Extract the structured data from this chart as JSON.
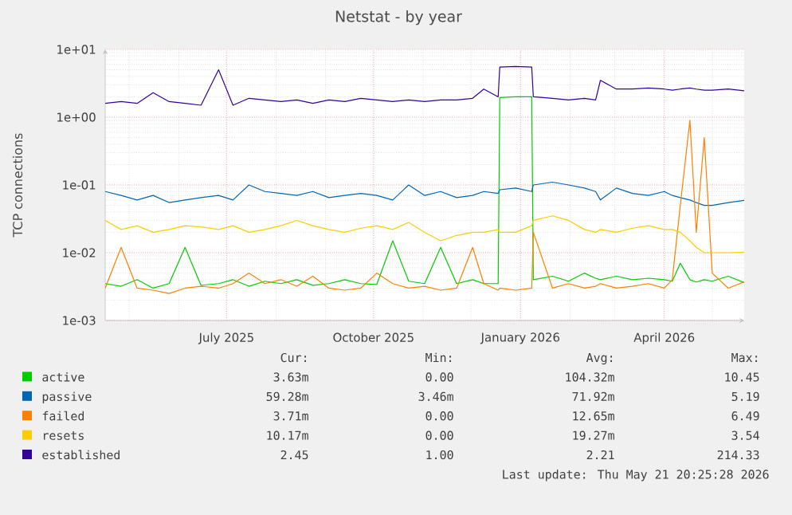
{
  "chart_data": {
    "type": "line",
    "title": "Netstat - by year",
    "ylabel": "TCP connections",
    "log": "y",
    "grid": true,
    "legend": "bottom",
    "xlim": [
      "2025-04-16",
      "2026-05-21"
    ],
    "xticks": [
      {
        "value": "2025-07-01",
        "label": "July 2025"
      },
      {
        "value": "2025-10-01",
        "label": "October 2025"
      },
      {
        "value": "2026-01-01",
        "label": "January 2026"
      },
      {
        "value": "2026-04-01",
        "label": "April 2026"
      }
    ],
    "ylim": [
      0.001,
      10
    ],
    "yticks": [
      {
        "value": 0.001,
        "label": "1e-03"
      },
      {
        "value": 0.01,
        "label": "1e-02"
      },
      {
        "value": 0.1,
        "label": "1e-01"
      },
      {
        "value": 1,
        "label": "1e+00"
      },
      {
        "value": 10,
        "label": "1e+01"
      }
    ],
    "x": [
      "2025-04-16",
      "2025-04-26",
      "2025-05-06",
      "2025-05-16",
      "2025-05-26",
      "2025-06-05",
      "2025-06-15",
      "2025-06-26",
      "2025-07-05",
      "2025-07-15",
      "2025-07-25",
      "2025-08-04",
      "2025-08-14",
      "2025-08-24",
      "2025-09-03",
      "2025-09-13",
      "2025-09-23",
      "2025-10-03",
      "2025-10-13",
      "2025-10-23",
      "2025-11-02",
      "2025-11-12",
      "2025-11-22",
      "2025-12-02",
      "2025-12-09",
      "2025-12-18",
      "2025-12-19",
      "2025-12-29",
      "2026-01-08",
      "2026-01-09",
      "2026-01-21",
      "2026-01-31",
      "2026-02-10",
      "2026-02-17",
      "2026-02-20",
      "2026-03-02",
      "2026-03-12",
      "2026-03-22",
      "2026-04-01",
      "2026-04-06",
      "2026-04-11",
      "2026-04-17",
      "2026-04-21",
      "2026-04-26",
      "2026-05-01",
      "2026-05-11",
      "2026-05-21"
    ],
    "series": [
      {
        "name": "active",
        "color": "#00cc00",
        "values": [
          0.0035,
          0.0032,
          0.004,
          0.003,
          0.0035,
          0.012,
          0.0033,
          0.0035,
          0.004,
          0.0032,
          0.0038,
          0.0035,
          0.004,
          0.0033,
          0.0035,
          0.004,
          0.0035,
          0.0034,
          0.015,
          0.0038,
          0.0035,
          0.012,
          0.0035,
          0.004,
          0.0035,
          0.0035,
          1.95,
          2.0,
          2.0,
          0.004,
          0.0045,
          0.0038,
          0.005,
          0.0042,
          0.004,
          0.0045,
          0.004,
          0.0042,
          0.004,
          0.0038,
          0.007,
          0.004,
          0.0037,
          0.004,
          0.0038,
          0.0045,
          0.00363
        ]
      },
      {
        "name": "passive",
        "color": "#0066b3",
        "values": [
          0.08,
          0.07,
          0.06,
          0.07,
          0.055,
          0.06,
          0.065,
          0.07,
          0.06,
          0.1,
          0.08,
          0.075,
          0.07,
          0.08,
          0.065,
          0.07,
          0.075,
          0.07,
          0.06,
          0.1,
          0.07,
          0.08,
          0.065,
          0.07,
          0.08,
          0.075,
          0.085,
          0.09,
          0.08,
          0.1,
          0.11,
          0.1,
          0.09,
          0.08,
          0.06,
          0.09,
          0.075,
          0.07,
          0.08,
          0.07,
          0.065,
          0.06,
          0.055,
          0.05,
          0.05,
          0.055,
          0.0593
        ]
      },
      {
        "name": "failed",
        "color": "#ff8000",
        "values": [
          0.003,
          0.012,
          0.003,
          0.0028,
          0.0025,
          0.003,
          0.0032,
          0.003,
          0.0035,
          0.005,
          0.0035,
          0.004,
          0.0032,
          0.0045,
          0.003,
          0.0028,
          0.003,
          0.005,
          0.0035,
          0.003,
          0.0032,
          0.0028,
          0.003,
          0.012,
          0.0035,
          0.0028,
          0.003,
          0.0028,
          0.003,
          0.02,
          0.003,
          0.0035,
          0.003,
          0.0032,
          0.0035,
          0.003,
          0.0032,
          0.0035,
          0.003,
          0.004,
          0.05,
          0.9,
          0.02,
          0.5,
          0.005,
          0.003,
          0.00371
        ]
      },
      {
        "name": "resets",
        "color": "#ffcc00",
        "values": [
          0.03,
          0.022,
          0.025,
          0.02,
          0.022,
          0.025,
          0.024,
          0.022,
          0.025,
          0.02,
          0.022,
          0.025,
          0.03,
          0.025,
          0.022,
          0.02,
          0.023,
          0.025,
          0.022,
          0.028,
          0.02,
          0.015,
          0.018,
          0.02,
          0.02,
          0.022,
          0.02,
          0.02,
          0.025,
          0.03,
          0.035,
          0.03,
          0.022,
          0.02,
          0.022,
          0.02,
          0.023,
          0.025,
          0.022,
          0.022,
          0.02,
          0.015,
          0.012,
          0.01,
          0.01,
          0.01,
          0.01017
        ]
      },
      {
        "name": "established",
        "color": "#330099",
        "values": [
          1.6,
          1.7,
          1.6,
          2.3,
          1.7,
          1.6,
          1.5,
          5.0,
          1.5,
          1.9,
          1.8,
          1.7,
          1.8,
          1.6,
          1.8,
          1.7,
          1.9,
          1.8,
          1.7,
          1.8,
          1.7,
          1.8,
          1.8,
          1.9,
          2.6,
          2.0,
          5.5,
          5.6,
          5.5,
          2.0,
          1.9,
          1.8,
          1.9,
          1.8,
          3.5,
          2.6,
          2.6,
          2.7,
          2.6,
          2.5,
          2.6,
          2.7,
          2.6,
          2.5,
          2.5,
          2.6,
          2.45
        ]
      }
    ],
    "annotations": [
      "Cur:",
      "Min:",
      "Avg:",
      "Max:",
      "3.63m",
      "0.00",
      "104.32m",
      "10.45",
      "59.28m",
      "3.46m",
      "71.92m",
      "5.19",
      "3.71m",
      "0.00",
      "12.65m",
      "6.49",
      "10.17m",
      "0.00",
      "19.27m",
      "3.54",
      "2.45",
      "1.00",
      "2.21",
      "214.33",
      "Last update: Thu May 21 20:25:28 2026"
    ]
  }
}
